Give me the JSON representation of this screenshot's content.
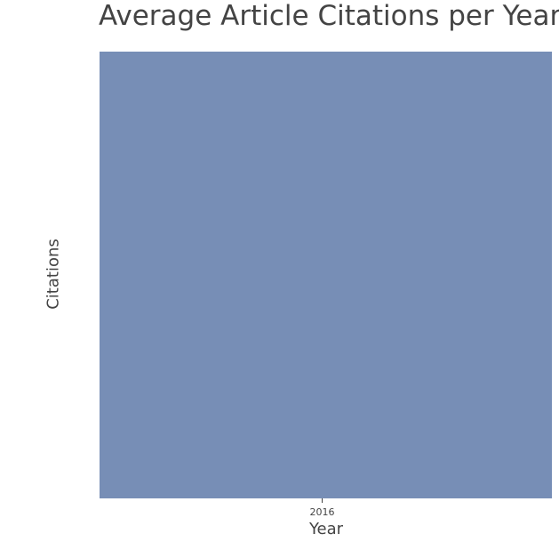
{
  "chart_data": {
    "type": "bar",
    "title": "Average Article Citations per Year",
    "xlabel": "Year",
    "ylabel": "Citations",
    "categories": [
      "2016"
    ],
    "series": [
      {
        "values": [
          1
        ]
      }
    ],
    "ylim": [
      0,
      1
    ],
    "grid": false,
    "colors": {
      "bar": "#778eb6"
    }
  }
}
